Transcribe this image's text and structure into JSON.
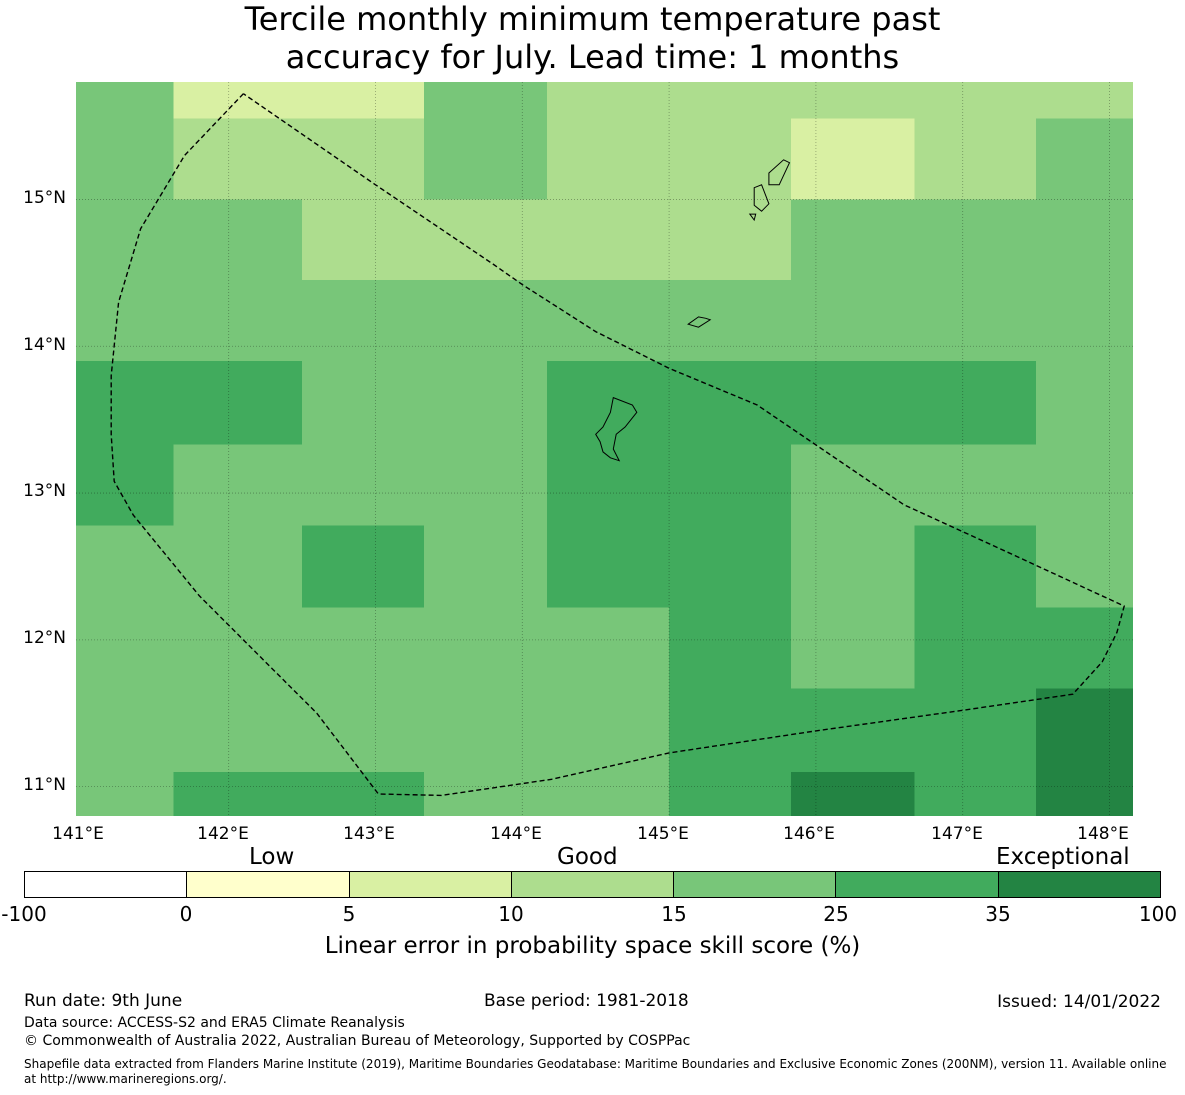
{
  "title": {
    "line1": "Tercile monthly minimum temperature past",
    "line2": "accuracy for July. Lead time: 1 months"
  },
  "axes": {
    "lat_labels": [
      "15°N",
      "14°N",
      "13°N",
      "12°N",
      "11°N"
    ],
    "lon_labels": [
      "141°E",
      "142°E",
      "143°E",
      "144°E",
      "145°E",
      "146°E",
      "147°E",
      "148°E"
    ],
    "lon_range": [
      140.96,
      148.16
    ],
    "lat_range": [
      10.8,
      15.8
    ],
    "grid_lons": [
      142,
      143,
      144,
      145,
      146,
      147,
      148
    ],
    "grid_lats": [
      11,
      12,
      13,
      14,
      15
    ]
  },
  "chart_data": {
    "type": "heatmap",
    "title": "Tercile monthly minimum temperature past accuracy for July. Lead time: 1 months",
    "lon_edges": [
      140.96,
      141.625,
      142.5,
      143.33,
      144.17,
      145.0,
      145.83,
      146.67,
      147.5,
      148.16
    ],
    "lat_edges": [
      15.8,
      15.55,
      15.0,
      14.45,
      13.9,
      13.33,
      12.78,
      12.22,
      11.67,
      11.1,
      10.8
    ],
    "values": [
      [
        20,
        7,
        7,
        20,
        12,
        12,
        12,
        12,
        12
      ],
      [
        20,
        12,
        12,
        20,
        12,
        12,
        7,
        12,
        20
      ],
      [
        20,
        20,
        12,
        12,
        12,
        12,
        20,
        20,
        20
      ],
      [
        20,
        20,
        20,
        20,
        20,
        20,
        20,
        20,
        20
      ],
      [
        30,
        30,
        20,
        20,
        30,
        30,
        30,
        30,
        20
      ],
      [
        30,
        20,
        20,
        20,
        30,
        30,
        20,
        20,
        20
      ],
      [
        20,
        20,
        30,
        20,
        30,
        30,
        20,
        30,
        20
      ],
      [
        20,
        20,
        20,
        20,
        20,
        30,
        20,
        30,
        30
      ],
      [
        20,
        20,
        20,
        20,
        20,
        30,
        30,
        30,
        40
      ],
      [
        20,
        30,
        30,
        20,
        20,
        30,
        40,
        30,
        40
      ]
    ],
    "colorbar": {
      "bounds": [
        -100,
        0,
        5,
        10,
        15,
        25,
        35,
        100
      ],
      "colors": [
        "#ffffff",
        "#ffffcc",
        "#d9f0a3",
        "#addd8e",
        "#78c679",
        "#41ab5d",
        "#238443"
      ],
      "tick_labels": [
        "-100",
        "0",
        "5",
        "10",
        "15",
        "25",
        "35",
        "100"
      ],
      "categories": [
        "Low",
        "Good",
        "Exceptional"
      ],
      "label": "Linear error in probability space skill score (%)"
    },
    "boundary": [
      [
        142.1,
        15.72
      ],
      [
        141.7,
        15.3
      ],
      [
        141.4,
        14.8
      ],
      [
        141.25,
        14.3
      ],
      [
        141.2,
        13.8
      ],
      [
        141.2,
        13.4
      ],
      [
        141.22,
        13.08
      ],
      [
        141.35,
        12.85
      ],
      [
        141.8,
        12.3
      ],
      [
        142.3,
        11.8
      ],
      [
        142.6,
        11.5
      ],
      [
        143.02,
        10.95
      ],
      [
        143.45,
        10.94
      ],
      [
        144.2,
        11.05
      ],
      [
        145.0,
        11.23
      ],
      [
        146.0,
        11.38
      ],
      [
        147.0,
        11.52
      ],
      [
        147.75,
        11.63
      ],
      [
        147.95,
        11.85
      ],
      [
        148.05,
        12.05
      ],
      [
        148.1,
        12.23
      ],
      [
        147.3,
        12.6
      ],
      [
        146.6,
        12.92
      ],
      [
        145.6,
        13.6
      ],
      [
        145.0,
        13.85
      ],
      [
        144.5,
        14.1
      ],
      [
        144.0,
        14.42
      ],
      [
        143.8,
        14.56
      ],
      [
        143.0,
        15.1
      ],
      [
        142.1,
        15.72
      ]
    ],
    "islands": [
      [
        [
          144.62,
          13.65
        ],
        [
          144.75,
          13.6
        ],
        [
          144.78,
          13.55
        ],
        [
          144.7,
          13.45
        ],
        [
          144.64,
          13.4
        ],
        [
          144.62,
          13.3
        ],
        [
          144.66,
          13.22
        ],
        [
          144.6,
          13.24
        ],
        [
          144.55,
          13.28
        ],
        [
          144.53,
          13.35
        ],
        [
          144.5,
          13.4
        ],
        [
          144.55,
          13.45
        ],
        [
          144.6,
          13.55
        ],
        [
          144.62,
          13.65
        ]
      ],
      [
        [
          145.13,
          14.15
        ],
        [
          145.2,
          14.2
        ],
        [
          145.25,
          14.19
        ],
        [
          145.28,
          14.18
        ],
        [
          145.2,
          14.13
        ],
        [
          145.13,
          14.15
        ]
      ],
      [
        [
          145.58,
          15.08
        ],
        [
          145.63,
          15.1
        ],
        [
          145.68,
          14.97
        ],
        [
          145.63,
          14.92
        ],
        [
          145.58,
          14.96
        ],
        [
          145.58,
          15.08
        ]
      ],
      [
        [
          145.68,
          15.18
        ],
        [
          145.78,
          15.27
        ],
        [
          145.82,
          15.25
        ],
        [
          145.75,
          15.1
        ],
        [
          145.68,
          15.1
        ],
        [
          145.68,
          15.18
        ]
      ],
      [
        [
          145.55,
          14.9
        ],
        [
          145.59,
          14.9
        ],
        [
          145.58,
          14.86
        ],
        [
          145.55,
          14.9
        ]
      ]
    ]
  },
  "footer": {
    "run_date": "Run date: 9th June",
    "base_period": "Base period: 1981-2018",
    "issued": "Issued: 14/01/2022",
    "data_source": "Data source: ACCESS-S2 and ERA5 Climate Reanalysis",
    "copyright": "© Commonwealth of Australia 2022, Australian Bureau of Meteorology, Supported by COSPPac",
    "shapefile": "Shapefile data extracted from Flanders Marine Institute (2019), Maritime Boundaries Geodatabase: Maritime Boundaries and Exclusive Economic Zones (200NM), version 11. Available online at http://www.marineregions.org/."
  }
}
